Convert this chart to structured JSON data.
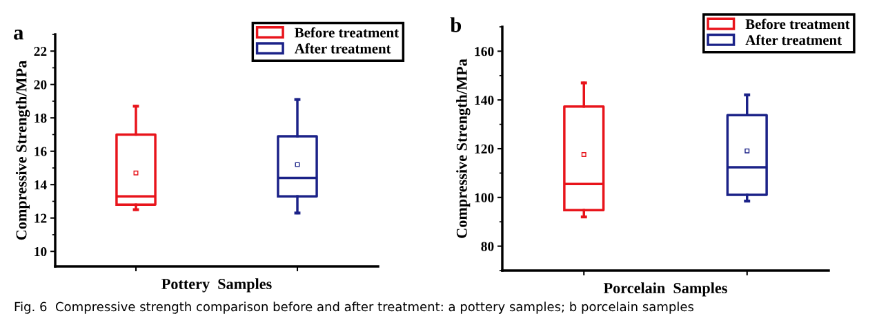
{
  "chart_data": [
    {
      "type": "box",
      "title": "a",
      "ylabel": "Compressive Strength/MPa",
      "xlabel": "Pottery  Samples",
      "categories": [
        null,
        null
      ],
      "ylim": [
        9.1,
        23
      ],
      "yticks": [
        10,
        12,
        14,
        16,
        18,
        20,
        22
      ],
      "legend": "top right",
      "grid": false,
      "marker": "square",
      "annotations": [
        "Fig. 6  Compressive strength comparison before and after treatment: a pottery samples; b porcelain samples"
      ],
      "series": [
        {
          "name": "Before treatment",
          "color": "#e8141b",
          "boxes": [
            {
              "low": 12.5,
              "q1": 12.8,
              "median": 13.3,
              "q3": 17.0,
              "high": 18.7,
              "mean": 14.7
            },
            null
          ]
        },
        {
          "name": "After treatment",
          "color": "#1b2288",
          "boxes": [
            null,
            {
              "low": 12.3,
              "q1": 13.3,
              "median": 14.4,
              "q3": 16.9,
              "high": 19.1,
              "mean": 15.2
            }
          ]
        }
      ]
    },
    {
      "type": "box",
      "title": "b",
      "ylabel": "Compressive Strength/MPa",
      "xlabel": "Porcelain  Samples",
      "categories": [
        null,
        null
      ],
      "ylim": [
        70,
        170
      ],
      "yticks": [
        80,
        100,
        120,
        140,
        160
      ],
      "legend": "top right",
      "grid": false,
      "marker": "square",
      "series": [
        {
          "name": "Before treatment",
          "color": "#e8141b",
          "boxes": [
            {
              "low": 92,
              "q1": 94.8,
              "median": 105.5,
              "q3": 137.3,
              "high": 147,
              "mean": 117.6
            },
            null
          ]
        },
        {
          "name": "After treatment",
          "color": "#1b2288",
          "boxes": [
            null,
            {
              "low": 98.5,
              "q1": 101.1,
              "median": 112.4,
              "q3": 133.8,
              "high": 142.1,
              "mean": 119.1
            }
          ]
        }
      ]
    }
  ]
}
